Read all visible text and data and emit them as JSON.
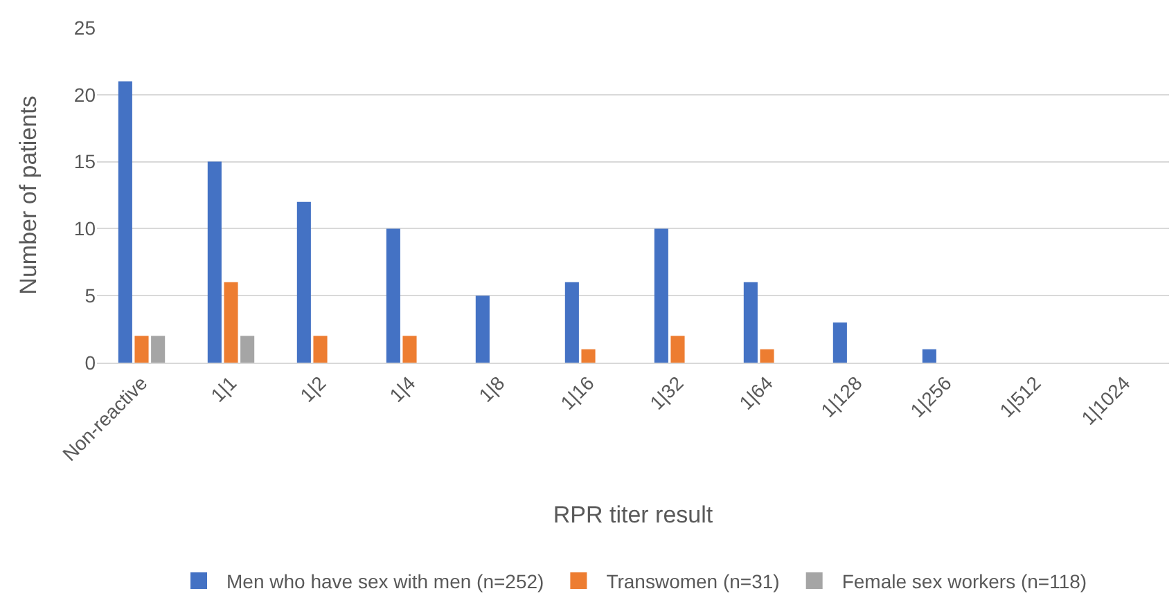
{
  "chart_data": {
    "type": "bar",
    "xlabel": "RPR titer result",
    "ylabel": "Number of patients",
    "categories": [
      "Non-reactive",
      "1|1",
      "1|2",
      "1|4",
      "1|8",
      "1|16",
      "1|32",
      "1|64",
      "1|128",
      "1|256",
      "1|512",
      "1|1024"
    ],
    "series": [
      {
        "name": "Men who have sex with men (n=252)",
        "color": "#4472c4",
        "values": [
          21,
          15,
          12,
          10,
          5,
          6,
          10,
          6,
          3,
          1,
          0,
          0
        ]
      },
      {
        "name": "Transwomen (n=31)",
        "color": "#ed7d31",
        "values": [
          2,
          6,
          2,
          2,
          0,
          1,
          2,
          1,
          0,
          0,
          0,
          0
        ]
      },
      {
        "name": "Female sex workers (n=118)",
        "color": "#a5a5a5",
        "values": [
          2,
          2,
          0,
          0,
          0,
          0,
          0,
          0,
          0,
          0,
          0,
          0
        ]
      }
    ],
    "ylim": [
      0,
      25
    ],
    "yticks": [
      0,
      5,
      10,
      15,
      20,
      25
    ],
    "grid": "y",
    "legend": "bottom"
  }
}
